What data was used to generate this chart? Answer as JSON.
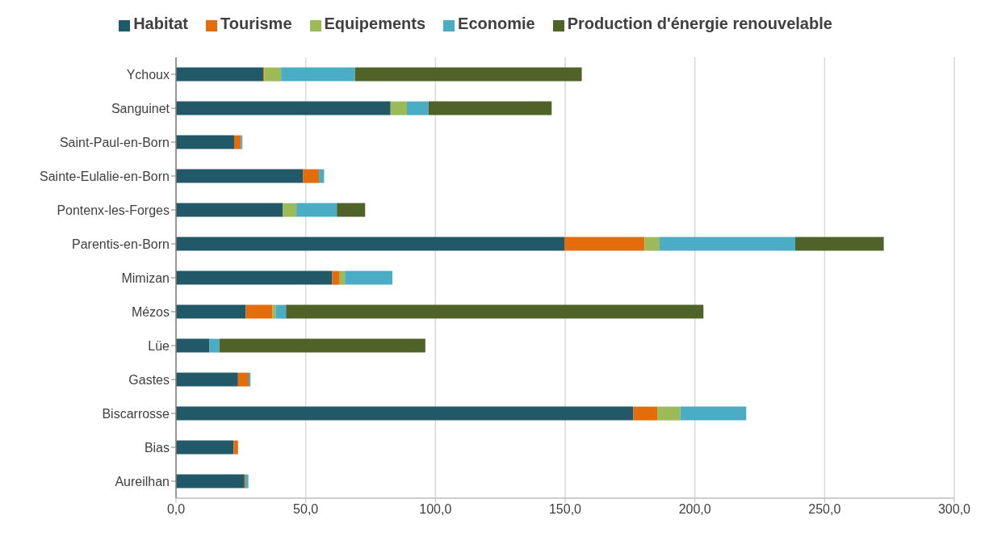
{
  "chart_data": {
    "type": "bar",
    "orientation": "horizontal",
    "stacked": true,
    "categories": [
      "Ychoux",
      "Sanguinet",
      "Saint-Paul-en-Born",
      "Sainte-Eulalie-en-Born",
      "Pontenx-les-Forges",
      "Parentis-en-Born",
      "Mimizan",
      "Mézos",
      "Lüe",
      "Gastes",
      "Biscarrosse",
      "Bias",
      "Aureilhan"
    ],
    "series": [
      {
        "name": "Habitat",
        "color": "#215968",
        "values": [
          33.6,
          82.7,
          22.4,
          48.9,
          41.2,
          149.7,
          60.2,
          26.9,
          12.9,
          23.9,
          176.3,
          22.2,
          26.4
        ]
      },
      {
        "name": "Tourisme",
        "color": "#e46c0a",
        "values": [
          0.4,
          null,
          2.6,
          6.2,
          null,
          30.9,
          2.9,
          10.3,
          null,
          4.1,
          9.2,
          1.7,
          0.4
        ]
      },
      {
        "name": "Equipements",
        "color": "#9bbb59",
        "values": [
          6.5,
          6.3,
          null,
          null,
          5.2,
          5.8,
          2.0,
          1.2,
          null,
          null,
          8.9,
          null,
          null
        ]
      },
      {
        "name": "Economie",
        "color": "#4bacc6",
        "values": [
          28.5,
          8.3,
          0.6,
          2.0,
          15.6,
          52.3,
          18.3,
          4.0,
          3.8,
          0.7,
          25.4,
          null,
          1.1
        ]
      },
      {
        "name": "Production d'énergie renouvelable",
        "color": "#4f6228",
        "values": [
          87.4,
          47.5,
          null,
          null,
          10.9,
          34.1,
          null,
          160.9,
          79.4,
          null,
          null,
          null,
          null
        ]
      }
    ],
    "xlim": [
      0,
      300
    ],
    "xticks": [
      {
        "value": 0,
        "label": "0,0"
      },
      {
        "value": 50,
        "label": "50,0"
      },
      {
        "value": 100,
        "label": "100,0"
      },
      {
        "value": 150,
        "label": "150,0"
      },
      {
        "value": 200,
        "label": "200,0"
      },
      {
        "value": 250,
        "label": "250,0"
      },
      {
        "value": 300,
        "label": "300,0"
      }
    ],
    "grid": "x",
    "legend": "top"
  }
}
